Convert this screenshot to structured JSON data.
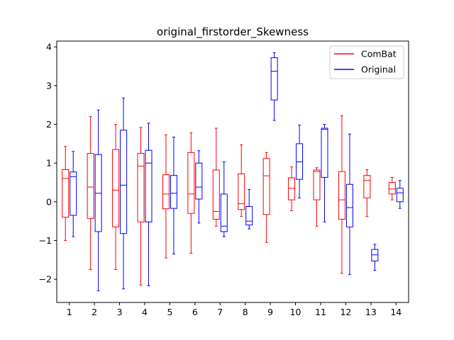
{
  "chart_data": {
    "type": "boxplot",
    "title": "original_firstorder_Skewness",
    "xlabel": "",
    "ylabel": "",
    "categories": [
      "1",
      "2",
      "3",
      "4",
      "5",
      "6",
      "7",
      "8",
      "9",
      "10",
      "11",
      "12",
      "13",
      "14"
    ],
    "ylim": [
      -2.6,
      4.15
    ],
    "yticks": [
      -2,
      -1,
      0,
      1,
      2,
      3,
      4
    ],
    "ytick_labels": [
      "−2",
      "−1",
      "0",
      "1",
      "2",
      "3",
      "4"
    ],
    "legend_position": "top-right",
    "series": [
      {
        "name": "ComBat",
        "color": "#ff0000",
        "boxes": [
          {
            "whislo": -1.0,
            "q1": -0.4,
            "med": 0.6,
            "q3": 0.83,
            "whishi": 1.43
          },
          {
            "whislo": -1.75,
            "q1": -0.43,
            "med": 0.38,
            "q3": 1.25,
            "whishi": 2.2
          },
          {
            "whislo": -1.75,
            "q1": -0.65,
            "med": 0.3,
            "q3": 1.35,
            "whishi": 2.0
          },
          {
            "whislo": -2.15,
            "q1": -0.52,
            "med": 0.92,
            "q3": 1.25,
            "whishi": 1.92
          },
          {
            "whislo": -1.45,
            "q1": -0.18,
            "med": 0.2,
            "q3": 0.7,
            "whishi": 1.73
          },
          {
            "whislo": -1.33,
            "q1": -0.3,
            "med": 0.2,
            "q3": 1.27,
            "whishi": 1.78
          },
          {
            "whislo": -0.63,
            "q1": -0.45,
            "med": -0.25,
            "q3": 0.82,
            "whishi": 1.9
          },
          {
            "whislo": -0.38,
            "q1": -0.2,
            "med": -0.05,
            "q3": 0.72,
            "whishi": 1.47
          },
          {
            "whislo": -1.05,
            "q1": -0.33,
            "med": 0.67,
            "q3": 1.12,
            "whishi": 1.27
          },
          {
            "whislo": -0.23,
            "q1": 0.05,
            "med": 0.35,
            "q3": 0.62,
            "whishi": 0.9
          },
          {
            "whislo": -0.63,
            "q1": 0.05,
            "med": 0.78,
            "q3": 0.82,
            "whishi": 0.88
          },
          {
            "whislo": -1.85,
            "q1": -0.45,
            "med": 0.05,
            "q3": 0.78,
            "whishi": 2.22
          },
          {
            "whislo": -0.38,
            "q1": 0.1,
            "med": 0.55,
            "q3": 0.68,
            "whishi": 0.83
          },
          {
            "whislo": 0.05,
            "q1": 0.2,
            "med": 0.33,
            "q3": 0.5,
            "whishi": 0.63
          }
        ]
      },
      {
        "name": "Original",
        "color": "#0000ff",
        "boxes": [
          {
            "whislo": -0.9,
            "q1": -0.35,
            "med": 0.65,
            "q3": 0.77,
            "whishi": 1.3
          },
          {
            "whislo": -2.3,
            "q1": -0.77,
            "med": 0.22,
            "q3": 1.22,
            "whishi": 2.37
          },
          {
            "whislo": -2.25,
            "q1": -0.82,
            "med": 0.43,
            "q3": 1.85,
            "whishi": 2.68
          },
          {
            "whislo": -2.17,
            "q1": -0.52,
            "med": 1.0,
            "q3": 1.33,
            "whishi": 2.03
          },
          {
            "whislo": -1.35,
            "q1": -0.17,
            "med": 0.22,
            "q3": 0.68,
            "whishi": 1.67
          },
          {
            "whislo": -0.55,
            "q1": 0.07,
            "med": 0.38,
            "q3": 1.0,
            "whishi": 1.32
          },
          {
            "whislo": -0.9,
            "q1": -0.77,
            "med": -0.63,
            "q3": 0.2,
            "whishi": 1.03
          },
          {
            "whislo": -0.7,
            "q1": -0.6,
            "med": -0.5,
            "q3": -0.12,
            "whishi": 0.32
          },
          {
            "whislo": 2.1,
            "q1": 2.63,
            "med": 3.37,
            "q3": 3.72,
            "whishi": 3.85
          },
          {
            "whislo": 0.1,
            "q1": 0.58,
            "med": 1.03,
            "q3": 1.5,
            "whishi": 1.98
          },
          {
            "whislo": -0.52,
            "q1": 0.63,
            "med": 1.87,
            "q3": 1.9,
            "whishi": 2.0
          },
          {
            "whislo": -1.88,
            "q1": -0.65,
            "med": -0.15,
            "q3": 0.45,
            "whishi": 1.75
          },
          {
            "whislo": -1.77,
            "q1": -1.53,
            "med": -1.37,
            "q3": -1.23,
            "whishi": -1.1
          },
          {
            "whislo": -0.17,
            "q1": 0.0,
            "med": 0.23,
            "q3": 0.35,
            "whishi": 0.55
          }
        ]
      }
    ]
  }
}
